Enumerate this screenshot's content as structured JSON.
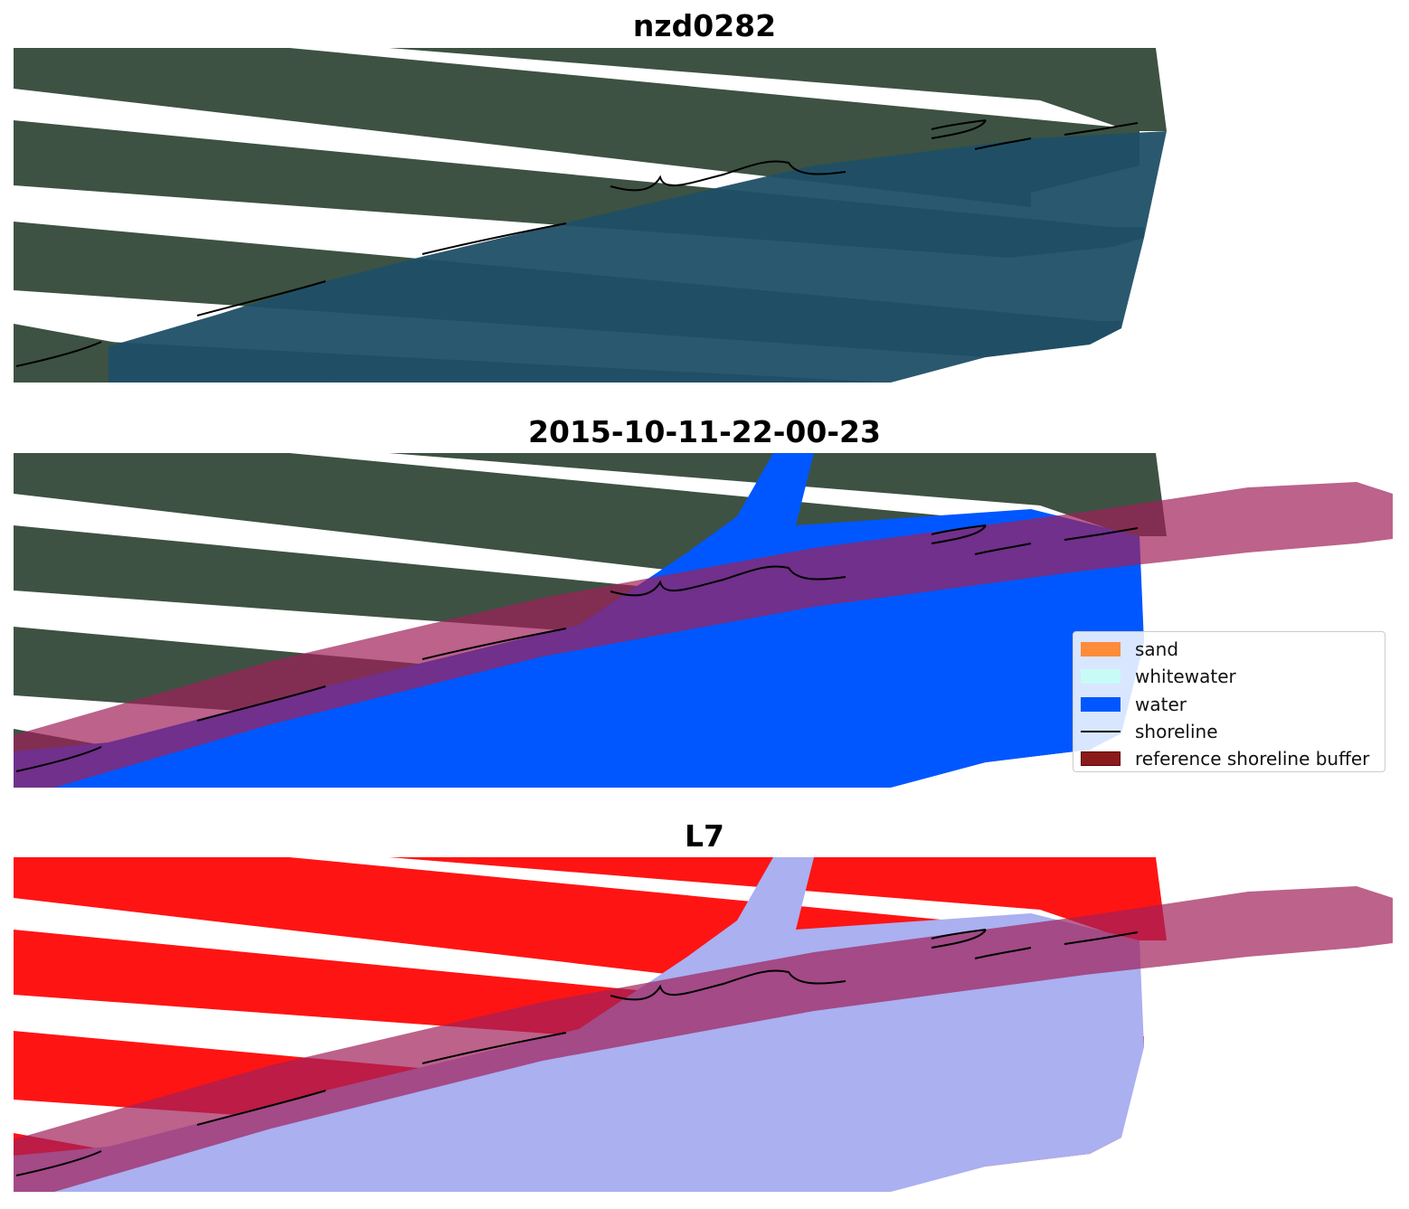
{
  "titles": {
    "site": "nzd0282",
    "date": "2015-10-11-22-00-23",
    "satellite": "L7"
  },
  "legend": {
    "items": [
      {
        "label": "sand",
        "color": "#ff8c3a",
        "kind": "patch"
      },
      {
        "label": "whitewater",
        "color": "#c8fbf6",
        "kind": "patch"
      },
      {
        "label": "water",
        "color": "#0057ff",
        "kind": "patch"
      },
      {
        "label": "shoreline",
        "color": "#000000",
        "kind": "line"
      },
      {
        "label": "reference shoreline buffer",
        "color": "#8b1a1a",
        "kind": "patch"
      }
    ]
  },
  "colors": {
    "land": "#3c5040",
    "sea": "#1e4d66",
    "water_class": "#0057ff",
    "buffer": "#a0205a",
    "index_land": "#ff1010",
    "index_water": "#aab0f0"
  }
}
